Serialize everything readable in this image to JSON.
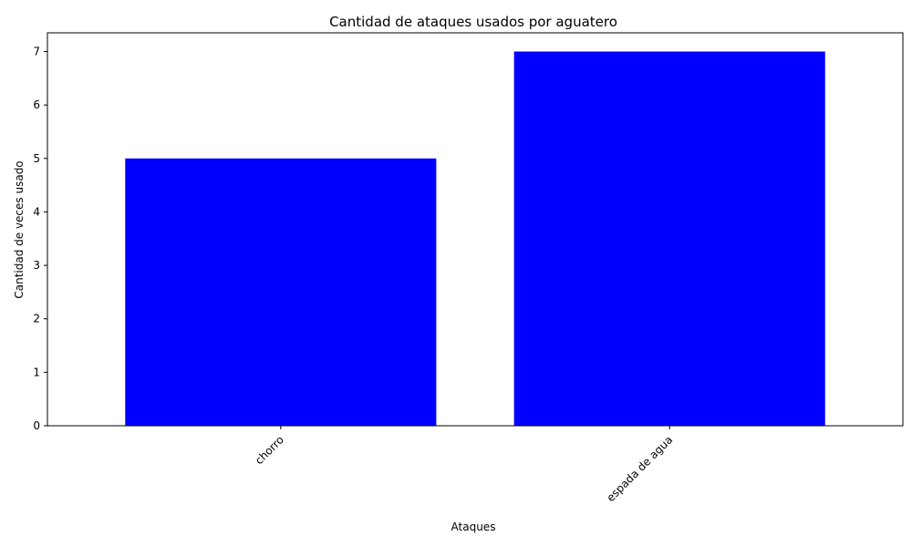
{
  "chart_data": {
    "type": "bar",
    "title": "Cantidad de ataques usados por aguatero",
    "xlabel": "Ataques",
    "ylabel": "Cantidad de veces usado",
    "categories": [
      "chorro",
      "espada de agua"
    ],
    "values": [
      5,
      7
    ],
    "ylim": [
      0,
      7.35
    ],
    "yticks": [
      0,
      1,
      2,
      3,
      4,
      5,
      6,
      7
    ],
    "bar_color": "#0000ff",
    "grid": false,
    "x_tick_rotation": 45
  }
}
